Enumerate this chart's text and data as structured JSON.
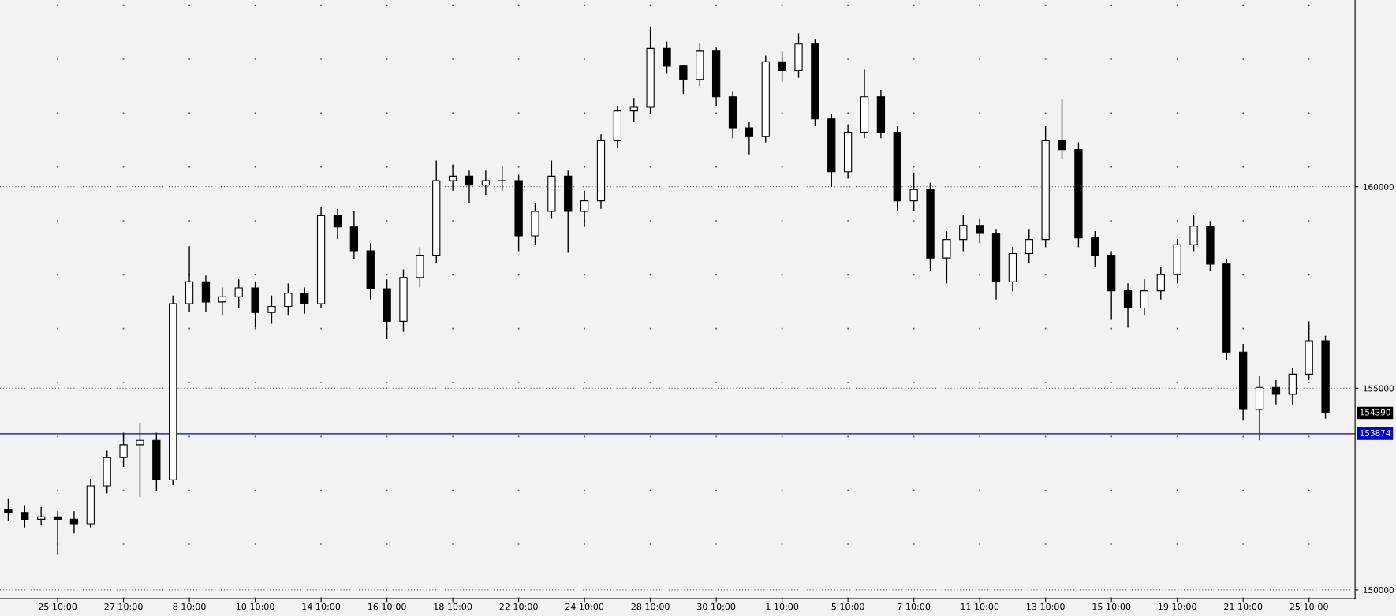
{
  "chart_data": {
    "type": "candlestick",
    "categories": [
      null,
      null,
      null,
      "25 10:00",
      null,
      null,
      null,
      "27 10:00",
      null,
      null,
      null,
      "8 10:00",
      null,
      null,
      null,
      "10 10:00",
      null,
      null,
      null,
      "14 10:00",
      null,
      null,
      null,
      "16 10:00",
      null,
      null,
      null,
      "18 10:00",
      null,
      null,
      null,
      "22 10:00",
      null,
      null,
      null,
      "24 10:00",
      null,
      null,
      null,
      "28 10:00",
      null,
      null,
      null,
      "30 10:00",
      null,
      null,
      null,
      "1 10:00",
      null,
      null,
      null,
      "5 10:00",
      null,
      null,
      null,
      "7 10:00",
      null,
      null,
      null,
      "11 10:00",
      null,
      null,
      null,
      "13 10:00",
      null,
      null,
      null,
      "15 10:00",
      null,
      null,
      null,
      "19 10:00",
      null,
      null,
      null,
      "21 10:00",
      null,
      null,
      null,
      "25 10:00",
      null
    ],
    "ohlc": [
      [
        152000,
        152250,
        151700,
        151920
      ],
      [
        151920,
        152100,
        151550,
        151750
      ],
      [
        151750,
        152050,
        151600,
        151810
      ],
      [
        151810,
        151950,
        150870,
        151750
      ],
      [
        151750,
        151950,
        151400,
        151640
      ],
      [
        151640,
        152750,
        151550,
        152580
      ],
      [
        152580,
        153450,
        152400,
        153280
      ],
      [
        153280,
        153900,
        153050,
        153600
      ],
      [
        153600,
        154150,
        152300,
        153710
      ],
      [
        153710,
        153900,
        152450,
        152730
      ],
      [
        152730,
        157300,
        152600,
        157100
      ],
      [
        157100,
        158520,
        156900,
        157640
      ],
      [
        157640,
        157800,
        156900,
        157140
      ],
      [
        157140,
        157500,
        156800,
        157270
      ],
      [
        157270,
        157700,
        157000,
        157490
      ],
      [
        157490,
        157650,
        156500,
        156880
      ],
      [
        156880,
        157300,
        156600,
        157030
      ],
      [
        157030,
        157600,
        156800,
        157360
      ],
      [
        157360,
        157500,
        156850,
        157100
      ],
      [
        157100,
        159500,
        157000,
        159280
      ],
      [
        159280,
        159450,
        158700,
        159000
      ],
      [
        159000,
        159400,
        158200,
        158410
      ],
      [
        158410,
        158600,
        157200,
        157470
      ],
      [
        157470,
        157700,
        156220,
        156660
      ],
      [
        156660,
        157950,
        156400,
        157750
      ],
      [
        157750,
        158500,
        157500,
        158300
      ],
      [
        158300,
        160650,
        158100,
        160150
      ],
      [
        160150,
        160550,
        159900,
        160260
      ],
      [
        160260,
        160400,
        159600,
        160040
      ],
      [
        160040,
        160400,
        159800,
        160150
      ],
      [
        160150,
        160500,
        159900,
        160150
      ],
      [
        160150,
        160300,
        158400,
        158780
      ],
      [
        158780,
        159600,
        158550,
        159390
      ],
      [
        159390,
        160650,
        159200,
        160260
      ],
      [
        160260,
        160400,
        158360,
        159390
      ],
      [
        159390,
        159900,
        159000,
        159650
      ],
      [
        159650,
        161300,
        159450,
        161140
      ],
      [
        161140,
        162000,
        160950,
        161880
      ],
      [
        161880,
        162200,
        161600,
        161970
      ],
      [
        161970,
        163970,
        161800,
        163430
      ],
      [
        163430,
        163600,
        162800,
        162990
      ],
      [
        162990,
        163000,
        162300,
        162660
      ],
      [
        162660,
        163550,
        162500,
        163360
      ],
      [
        163360,
        163450,
        162000,
        162230
      ],
      [
        162230,
        162350,
        161200,
        161460
      ],
      [
        161460,
        161600,
        160800,
        161240
      ],
      [
        161240,
        163250,
        161100,
        163100
      ],
      [
        163100,
        163350,
        162600,
        162880
      ],
      [
        162880,
        163800,
        162700,
        163540
      ],
      [
        163540,
        163650,
        161500,
        161680
      ],
      [
        161680,
        161800,
        160000,
        160370
      ],
      [
        160370,
        161550,
        160200,
        161350
      ],
      [
        161350,
        162900,
        161200,
        162230
      ],
      [
        162230,
        162400,
        161200,
        161350
      ],
      [
        161350,
        161500,
        159400,
        159650
      ],
      [
        159650,
        160350,
        159400,
        159930
      ],
      [
        159930,
        160100,
        157900,
        158230
      ],
      [
        158230,
        158900,
        157600,
        158690
      ],
      [
        158690,
        159300,
        158400,
        159040
      ],
      [
        159040,
        159200,
        158600,
        158840
      ],
      [
        158840,
        158950,
        157200,
        157640
      ],
      [
        157640,
        158500,
        157400,
        158340
      ],
      [
        158340,
        158950,
        158100,
        158690
      ],
      [
        158690,
        161500,
        158500,
        161140
      ],
      [
        161140,
        162180,
        160700,
        160920
      ],
      [
        160920,
        161100,
        158500,
        158730
      ],
      [
        158730,
        158900,
        158000,
        158300
      ],
      [
        158300,
        158400,
        156700,
        157420
      ],
      [
        157420,
        157600,
        156500,
        156990
      ],
      [
        156990,
        157700,
        156800,
        157420
      ],
      [
        157420,
        158000,
        157200,
        157820
      ],
      [
        157820,
        158700,
        157600,
        158560
      ],
      [
        158560,
        159300,
        158400,
        159020
      ],
      [
        159020,
        159150,
        157900,
        158080
      ],
      [
        158080,
        158200,
        155700,
        155900
      ],
      [
        155900,
        156100,
        154200,
        154480
      ],
      [
        154480,
        155300,
        153710,
        155020
      ],
      [
        155020,
        155200,
        154600,
        154850
      ],
      [
        154850,
        155500,
        154600,
        155350
      ],
      [
        155350,
        156660,
        155200,
        156180
      ],
      [
        156180,
        156300,
        154250,
        154390
      ]
    ],
    "color": "#000000",
    "ylim": [
      149780,
      164630
    ],
    "yticks": [
      150000,
      155000,
      160000
    ],
    "grid": true,
    "legend": false,
    "ref_lines": [
      {
        "axis": "y",
        "value": 153874,
        "label": "153874",
        "color": "#0000cc",
        "line_style": "solid"
      }
    ],
    "annotations": [
      "154390"
    ]
  }
}
